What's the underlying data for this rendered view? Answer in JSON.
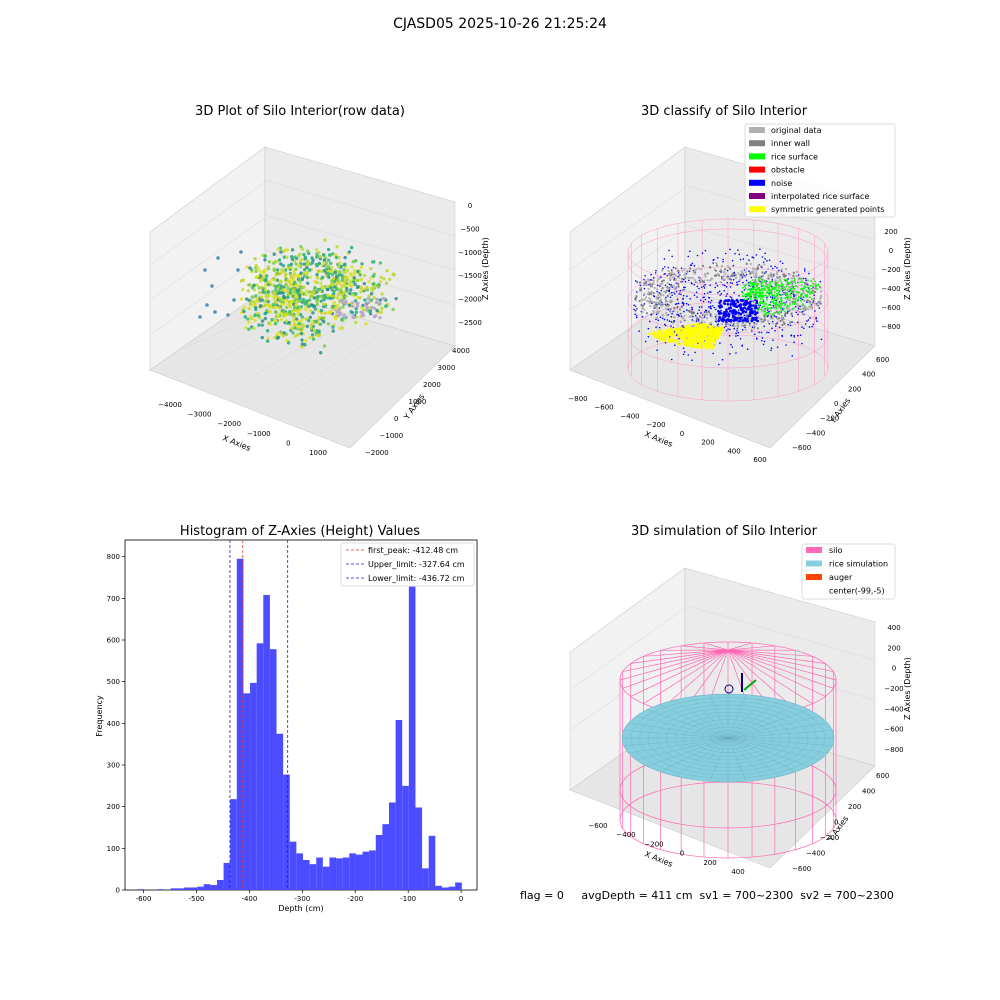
{
  "figure_title": "CJASD05 2025-10-26 21:25:24",
  "colors": {
    "hist_bar": "#4b4bff",
    "first_peak_line": "#e03030",
    "limit_line": "#2020c0",
    "silo": "#ff69b4",
    "rice_simulation": "#87cedf",
    "auger": "#ff4500",
    "original_data": "#b0b0b0",
    "inner_wall": "#808080",
    "rice_surface": "#00ff00",
    "obstacle": "#ff0000",
    "noise": "#0000ff",
    "interpolated_rice_surface": "#800080",
    "symmetric_generated_points": "#ffff00"
  },
  "panels": {
    "raw": {
      "title": "3D Plot of Silo Interior(row data)",
      "xlabel": "X Axies",
      "ylabel": "Y Axies",
      "zlabel": "Z Axies (Depth)",
      "xticks": [
        "−4000",
        "−3000",
        "−2000",
        "−1000",
        "0",
        "1000"
      ],
      "yticks": [
        "−2000",
        "−1000",
        "0",
        "1000",
        "2000",
        "3000",
        "4000"
      ],
      "zticks": [
        "0",
        "−500",
        "−1000",
        "−1500",
        "−2000",
        "−2500"
      ]
    },
    "classify": {
      "title": "3D classify of Silo Interior",
      "xlabel": "X Axies",
      "ylabel": "Y Axies",
      "zlabel": "Z Axies (Depth)",
      "xticks": [
        "−800",
        "−600",
        "−400",
        "−200",
        "0",
        "200",
        "400",
        "600"
      ],
      "yticks": [
        "−600",
        "−400",
        "−200",
        "0",
        "200",
        "400",
        "600"
      ],
      "zticks": [
        "200",
        "0",
        "−200",
        "−400",
        "−600",
        "−800"
      ],
      "legend": [
        {
          "label": "original data",
          "color": "#b0b0b0"
        },
        {
          "label": "inner wall",
          "color": "#808080"
        },
        {
          "label": "rice surface",
          "color": "#00ff00"
        },
        {
          "label": "obstacle",
          "color": "#ff0000"
        },
        {
          "label": "noise",
          "color": "#0000ff"
        },
        {
          "label": "interpolated rice surface",
          "color": "#800080"
        },
        {
          "label": "symmetric generated points",
          "color": "#ffff00"
        }
      ]
    },
    "simulation": {
      "title": "3D simulation of Silo Interior",
      "xlabel": "X Axies",
      "ylabel": "Y Axies",
      "zlabel": "Z Axies (Depth)",
      "xticks": [
        "−600",
        "−400",
        "−200",
        "0",
        "200",
        "400"
      ],
      "yticks": [
        "−600",
        "−400",
        "−200",
        "0",
        "200",
        "400",
        "600"
      ],
      "zticks": [
        "400",
        "200",
        "0",
        "−200",
        "−400",
        "−600",
        "−800"
      ],
      "legend": [
        {
          "label": "silo",
          "color": "#ff69b4"
        },
        {
          "label": "rice simulation",
          "color": "#87cedf"
        },
        {
          "label": "auger",
          "color": "#ff4500"
        },
        {
          "label": "center(-99,-5)",
          "color": ""
        }
      ]
    }
  },
  "footer": {
    "flag": "flag = 0",
    "stats": "avgDepth = 411 cm  sv1 = 700~2300  sv2 = 700~2300"
  },
  "chart_data": {
    "type": "bar",
    "title": "Histogram of Z-Axies (Height) Values",
    "xlabel": "Depth (cm)",
    "ylabel": "Frequency",
    "xlim": [
      -635,
      30
    ],
    "ylim": [
      0,
      840
    ],
    "xticks": [
      -600,
      -500,
      -400,
      -300,
      -200,
      -100,
      0
    ],
    "yticks": [
      0,
      100,
      200,
      300,
      400,
      500,
      600,
      700,
      800
    ],
    "bin_width": 12.5,
    "bins": [
      {
        "x": -605,
        "value": 2
      },
      {
        "x": -592.5,
        "value": 0
      },
      {
        "x": -580,
        "value": 0
      },
      {
        "x": -567.5,
        "value": 2
      },
      {
        "x": -555,
        "value": 0
      },
      {
        "x": -542.5,
        "value": 4
      },
      {
        "x": -530,
        "value": 4
      },
      {
        "x": -517.5,
        "value": 6
      },
      {
        "x": -505,
        "value": 6
      },
      {
        "x": -492.5,
        "value": 8
      },
      {
        "x": -480,
        "value": 14
      },
      {
        "x": -467.5,
        "value": 12
      },
      {
        "x": -455,
        "value": 24
      },
      {
        "x": -442.5,
        "value": 65
      },
      {
        "x": -430,
        "value": 218
      },
      {
        "x": -417.5,
        "value": 795
      },
      {
        "x": -405,
        "value": 472
      },
      {
        "x": -392.5,
        "value": 497
      },
      {
        "x": -380,
        "value": 592
      },
      {
        "x": -367.5,
        "value": 708
      },
      {
        "x": -355,
        "value": 578
      },
      {
        "x": -342.5,
        "value": 375
      },
      {
        "x": -330,
        "value": 277
      },
      {
        "x": -317.5,
        "value": 116
      },
      {
        "x": -305,
        "value": 88
      },
      {
        "x": -292.5,
        "value": 72
      },
      {
        "x": -280,
        "value": 62
      },
      {
        "x": -267.5,
        "value": 78
      },
      {
        "x": -255,
        "value": 56
      },
      {
        "x": -242.5,
        "value": 78
      },
      {
        "x": -230,
        "value": 76
      },
      {
        "x": -217.5,
        "value": 78
      },
      {
        "x": -205,
        "value": 88
      },
      {
        "x": -192.5,
        "value": 85
      },
      {
        "x": -180,
        "value": 92
      },
      {
        "x": -167.5,
        "value": 95
      },
      {
        "x": -155,
        "value": 132
      },
      {
        "x": -142.5,
        "value": 158
      },
      {
        "x": -130,
        "value": 210
      },
      {
        "x": -117.5,
        "value": 408
      },
      {
        "x": -105,
        "value": 250
      },
      {
        "x": -92.5,
        "value": 728
      },
      {
        "x": -80,
        "value": 198
      },
      {
        "x": -67.5,
        "value": 52
      },
      {
        "x": -55,
        "value": 130
      },
      {
        "x": -42.5,
        "value": 10
      },
      {
        "x": -30,
        "value": 6
      },
      {
        "x": -17.5,
        "value": 8
      },
      {
        "x": -5,
        "value": 18
      }
    ],
    "vlines": [
      {
        "name": "first_peak: -412.48 cm",
        "x": -412.48,
        "color": "#e03030"
      },
      {
        "name": "Upper_limit: -327.64 cm",
        "x": -327.64,
        "color": "#2020c0"
      },
      {
        "name": "Lower_limit: -436.72 cm",
        "x": -436.72,
        "color": "#2020c0"
      }
    ],
    "legend": "top-right"
  }
}
